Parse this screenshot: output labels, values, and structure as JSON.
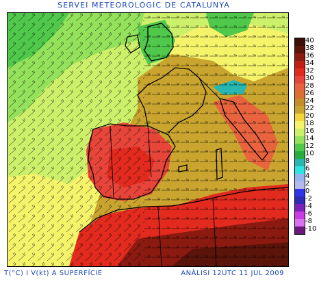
{
  "header": {
    "title": "SERVEI METEOROLÒGIC DE CATALUNYA"
  },
  "footer": {
    "left": "T(°C) I V(kt) A SUPERFÍCIE",
    "right": "ANÀLISI 12UTC 11 JUL 2009"
  },
  "legend": {
    "labels": [
      "40",
      "38",
      "36",
      "34",
      "32",
      "30",
      "28",
      "26",
      "24",
      "22",
      "20",
      "18",
      "16",
      "14",
      "12",
      "10",
      "8",
      "6",
      "4",
      "2",
      "0",
      "-2",
      "-4",
      "-6",
      "-8",
      "-10"
    ],
    "colors": [
      "#3b0f05",
      "#5a140a",
      "#8b1a10",
      "#c41d14",
      "#e22a1e",
      "#e8453a",
      "#e9643e",
      "#dc6e2f",
      "#c58c2a",
      "#c9a52f",
      "#f3d43a",
      "#f5f36a",
      "#cdf06b",
      "#94e25b",
      "#4fc84b",
      "#28ae3c",
      "#27b7b0",
      "#2fe5e3",
      "#97b4f0",
      "#b8b8f0",
      "#2f34e6",
      "#2f2bb6",
      "#7c21b9",
      "#cc3be3",
      "#d971f0",
      "#6a197a"
    ]
  }
}
